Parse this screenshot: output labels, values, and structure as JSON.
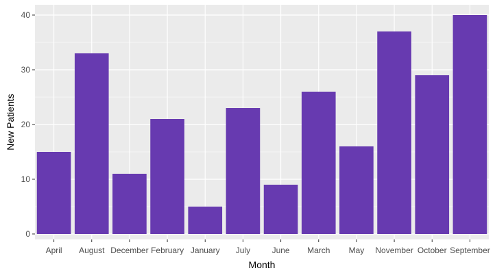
{
  "chart_data": {
    "type": "bar",
    "title": "",
    "xlabel": "Month",
    "ylabel": "New Patients",
    "categories": [
      "April",
      "August",
      "December",
      "February",
      "January",
      "July",
      "June",
      "March",
      "May",
      "November",
      "October",
      "September"
    ],
    "values": [
      15,
      33,
      11,
      21,
      5,
      23,
      9,
      26,
      16,
      37,
      29,
      40
    ],
    "ylim": [
      0,
      42
    ],
    "yticks": [
      0,
      10,
      20,
      30,
      40
    ],
    "grid": true,
    "legend": "none",
    "colors": {
      "bar": "#673AB0",
      "panel": "#EBEBEB",
      "grid": "#FFFFFF"
    }
  }
}
